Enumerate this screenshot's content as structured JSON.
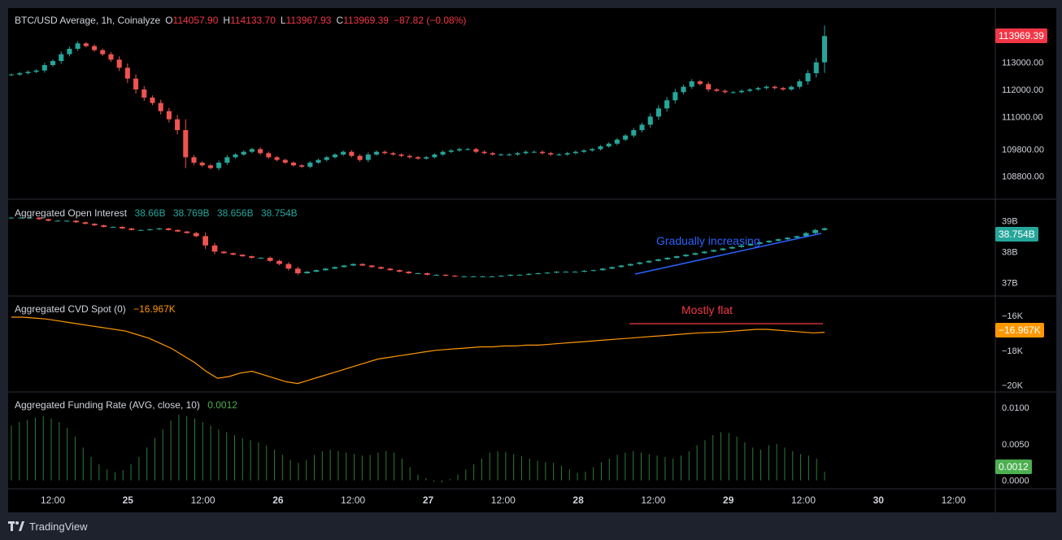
{
  "header": {
    "symbol": "BTC/USD Average, 1h, Coinalyze",
    "o_label": "O",
    "o_value": "114057.90",
    "h_label": "H",
    "h_value": "114133.70",
    "l_label": "L",
    "l_value": "113967.93",
    "c_label": "C",
    "c_value": "113969.39",
    "change": "−87.82 (−0.08%)"
  },
  "oi_legend": {
    "title": "Aggregated Open Interest",
    "v1": "38.66B",
    "v2": "38.769B",
    "v3": "38.656B",
    "v4": "38.754B"
  },
  "cvd_legend": {
    "title": "Aggregated CVD Spot (0)",
    "value": "−16.967K"
  },
  "funding_legend": {
    "title": "Aggregated Funding Rate (AVG, close, 10)",
    "value": "0.0012"
  },
  "annotations": {
    "oi": "Gradually increasing",
    "cvd": "Mostly flat"
  },
  "price_tags": {
    "price": "113969.39",
    "oi": "38.754B",
    "cvd": "−16.967K",
    "funding": "0.0012"
  },
  "colors": {
    "up": "#26a69a",
    "down": "#ef5350",
    "cvd_line": "#ff9800",
    "funding_bar": "#2e7d32",
    "annotation_blue": "#2962ff",
    "annotation_red": "#f23645"
  },
  "footer": {
    "brand": "TradingView",
    "logo": "tradingview-logo-icon"
  },
  "chart_data": [
    {
      "type": "candlestick",
      "name": "BTC/USD Average, 1h, Coinalyze",
      "y_ticks": [
        "113000.00",
        "112000.00",
        "111000.00",
        "109800.00",
        "108800.00"
      ],
      "x_ticks": [
        "12:00",
        "25",
        "12:00",
        "26",
        "12:00",
        "27",
        "12:00",
        "28",
        "12:00",
        "29",
        "12:00",
        "30",
        "12:00"
      ],
      "ylim": [
        108400,
        114400
      ],
      "close": [
        112550,
        112600,
        112650,
        112700,
        112900,
        113050,
        113300,
        113500,
        113700,
        113600,
        113450,
        113300,
        113100,
        112800,
        112400,
        112000,
        111700,
        111500,
        111200,
        110900,
        110500,
        109500,
        109300,
        109200,
        109100,
        109300,
        109500,
        109600,
        109700,
        109800,
        109650,
        109500,
        109400,
        109300,
        109200,
        109150,
        109300,
        109400,
        109500,
        109600,
        109700,
        109550,
        109400,
        109600,
        109700,
        109650,
        109600,
        109550,
        109500,
        109450,
        109500,
        109600,
        109700,
        109750,
        109800,
        109800,
        109700,
        109650,
        109600,
        109600,
        109600,
        109650,
        109700,
        109700,
        109650,
        109600,
        109600,
        109650,
        109700,
        109750,
        109800,
        109900,
        110000,
        110150,
        110300,
        110500,
        110700,
        111000,
        111300,
        111600,
        111900,
        112100,
        112300,
        112200,
        112000,
        111950,
        111900,
        111900,
        111950,
        112000,
        112050,
        112100,
        112050,
        112000,
        112100,
        112300,
        112600,
        113000,
        113969.39
      ],
      "ohlc_last": {
        "open": 114057.9,
        "high": 114133.7,
        "low": 113967.93,
        "close": 113969.39,
        "change": -87.82,
        "change_pct": -0.08
      }
    },
    {
      "type": "candlestick",
      "name": "Aggregated Open Interest",
      "y_ticks": [
        "39B",
        "38B",
        "37B"
      ],
      "ylim": [
        36.8,
        39.3
      ],
      "close": [
        39.1,
        39.1,
        39.1,
        39.05,
        39.0,
        39.0,
        39.0,
        38.95,
        38.9,
        38.85,
        38.8,
        38.8,
        38.75,
        38.7,
        38.7,
        38.72,
        38.75,
        38.7,
        38.65,
        38.6,
        38.5,
        38.2,
        38.0,
        37.95,
        37.9,
        37.85,
        37.8,
        37.8,
        37.7,
        37.6,
        37.45,
        37.3,
        37.35,
        37.4,
        37.45,
        37.5,
        37.55,
        37.6,
        37.55,
        37.5,
        37.45,
        37.4,
        37.35,
        37.3,
        37.3,
        37.25,
        37.25,
        37.22,
        37.2,
        37.2,
        37.2,
        37.2,
        37.2,
        37.22,
        37.25,
        37.25,
        37.28,
        37.3,
        37.32,
        37.35,
        37.35,
        37.35,
        37.38,
        37.4,
        37.45,
        37.5,
        37.55,
        37.6,
        37.65,
        37.7,
        37.75,
        37.8,
        37.85,
        37.9,
        37.95,
        38.0,
        38.05,
        38.1,
        38.15,
        38.2,
        38.25,
        38.3,
        38.35,
        38.4,
        38.45,
        38.5,
        38.6,
        38.7,
        38.754
      ],
      "ohlc_last": [
        "38.66B",
        "38.769B",
        "38.656B",
        "38.754B"
      ]
    },
    {
      "type": "line",
      "name": "Aggregated CVD Spot (0)",
      "y_ticks": [
        "−16K",
        "−18K",
        "−20K"
      ],
      "ylim": [
        -20.2,
        -15.4
      ],
      "values": [
        -16.1,
        -16.1,
        -16.15,
        -16.2,
        -16.3,
        -16.4,
        -16.5,
        -16.6,
        -16.7,
        -16.8,
        -16.9,
        -17.1,
        -17.3,
        -17.6,
        -17.9,
        -18.3,
        -18.7,
        -19.2,
        -19.6,
        -19.5,
        -19.3,
        -19.2,
        -19.4,
        -19.6,
        -19.8,
        -19.9,
        -19.7,
        -19.5,
        -19.3,
        -19.1,
        -18.9,
        -18.7,
        -18.5,
        -18.4,
        -18.3,
        -18.2,
        -18.1,
        -18.0,
        -17.95,
        -17.9,
        -17.85,
        -17.8,
        -17.8,
        -17.75,
        -17.75,
        -17.7,
        -17.7,
        -17.65,
        -17.6,
        -17.55,
        -17.5,
        -17.45,
        -17.4,
        -17.35,
        -17.3,
        -17.25,
        -17.2,
        -17.15,
        -17.1,
        -17.05,
        -17.0,
        -16.98,
        -16.95,
        -16.9,
        -16.85,
        -16.8,
        -16.8,
        -16.85,
        -16.9,
        -16.95,
        -17.0,
        -16.967
      ]
    },
    {
      "type": "bar",
      "name": "Aggregated Funding Rate (AVG, close, 10)",
      "y_ticks": [
        "0.0100",
        "0.0050",
        "0.0000"
      ],
      "ylim": [
        -0.0006,
        0.011
      ],
      "values": [
        0.0075,
        0.008,
        0.0083,
        0.0086,
        0.0088,
        0.0085,
        0.008,
        0.0072,
        0.006,
        0.0045,
        0.0032,
        0.0022,
        0.0015,
        0.0011,
        0.0014,
        0.0022,
        0.0032,
        0.0045,
        0.0058,
        0.007,
        0.0082,
        0.009,
        0.0088,
        0.0085,
        0.008,
        0.0075,
        0.007,
        0.0066,
        0.0062,
        0.0058,
        0.0055,
        0.0052,
        0.0048,
        0.0042,
        0.0035,
        0.0028,
        0.0024,
        0.0028,
        0.0035,
        0.004,
        0.0042,
        0.004,
        0.0038,
        0.0036,
        0.0034,
        0.0035,
        0.0038,
        0.004,
        0.0038,
        0.003,
        0.0018,
        0.0008,
        0.0003,
        -0.0002,
        -0.0003,
        0.0002,
        0.0008,
        0.0015,
        0.0022,
        0.003,
        0.0038,
        0.004,
        0.0039,
        0.0036,
        0.0033,
        0.003,
        0.0027,
        0.0025,
        0.0024,
        0.002,
        0.0015,
        0.001,
        0.0012,
        0.0018,
        0.0025,
        0.003,
        0.0035,
        0.0038,
        0.004,
        0.0038,
        0.0036,
        0.0034,
        0.0032,
        0.003,
        0.0034,
        0.004,
        0.0048,
        0.0055,
        0.0062,
        0.0066,
        0.0065,
        0.006,
        0.0052,
        0.0045,
        0.0042,
        0.0048,
        0.005,
        0.0045,
        0.004,
        0.0036,
        0.0034,
        0.003,
        0.0012
      ]
    }
  ]
}
